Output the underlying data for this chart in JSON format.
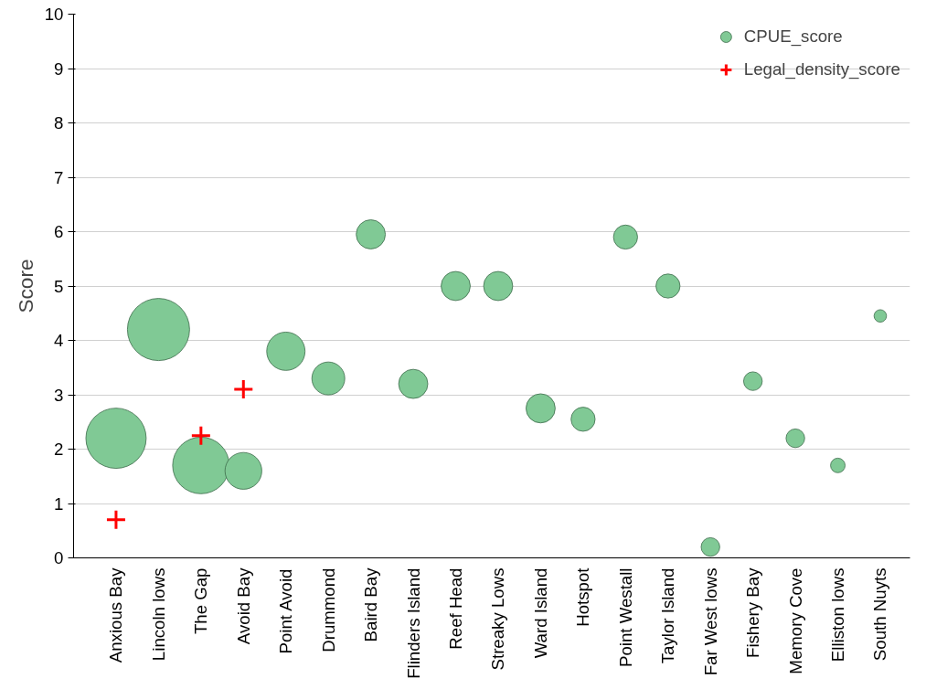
{
  "chart_data": {
    "type": "bubble",
    "ylabel": "Score",
    "categories": [
      "Anxious Bay",
      "Lincoln lows",
      "The Gap",
      "Avoid Bay",
      "Point Avoid",
      "Drummond",
      "Baird Bay",
      "Flinders Island",
      "Reef Head",
      "Streaky Lows",
      "Ward Island",
      "Hotspot",
      "Point Westall",
      "Taylor Island",
      "Far West lows",
      "Fishery Bay",
      "Memory Cove",
      "Elliston lows",
      "South Nuyts"
    ],
    "series": [
      {
        "name": "CPUE_score",
        "color": "#80c995",
        "values": [
          2.2,
          4.2,
          1.7,
          1.6,
          3.8,
          3.3,
          5.95,
          3.2,
          5.0,
          5.0,
          2.75,
          2.55,
          5.9,
          5.0,
          0.2,
          3.25,
          2.2,
          1.7,
          4.45
        ],
        "sizes": [
          0.94,
          1,
          0.83,
          0.35,
          0.38,
          0.28,
          0.22,
          0.22,
          0.22,
          0.22,
          0.22,
          0.15,
          0.15,
          0.15,
          0.09,
          0.09,
          0.09,
          0.055,
          0.04
        ]
      },
      {
        "name": "Legal_density_score",
        "type": "scatter",
        "color": "#ff0000",
        "marker": "cross",
        "x": [
          "Anxious Bay",
          "The Gap",
          "Avoid Bay"
        ],
        "values": [
          0.7,
          2.25,
          3.1
        ]
      }
    ],
    "ylim": [
      0,
      10
    ],
    "yticks": [
      0,
      1,
      2,
      3,
      4,
      5,
      6,
      7,
      8,
      9,
      10
    ],
    "grid": "y",
    "legend": "top right"
  }
}
